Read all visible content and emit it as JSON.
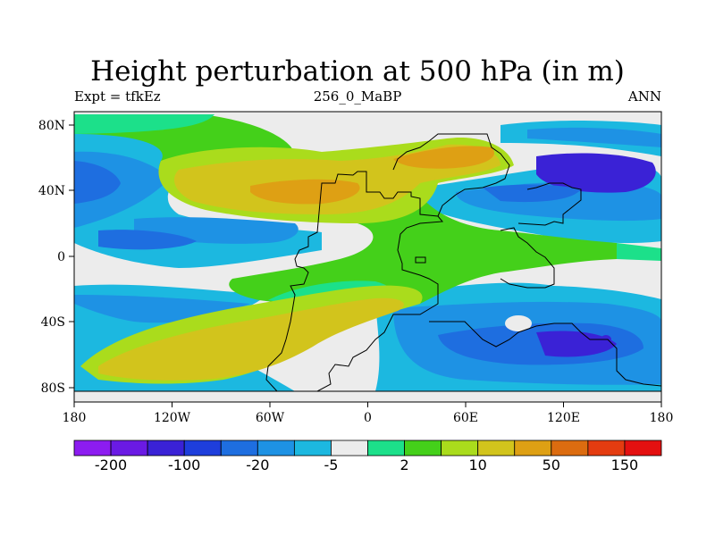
{
  "title": "Height perturbation at 500 hPa (in m)",
  "left_label": "Expt = tfkEz",
  "center_label": "256_0_MaBP",
  "right_label": "ANN",
  "lon_ticks": [
    "180",
    "120W",
    "60W",
    "0",
    "60E",
    "120E",
    "180"
  ],
  "lat_ticks": [
    "80N",
    "40N",
    "0",
    "40S",
    "80S"
  ],
  "colorbar": {
    "colors": [
      "#8c1cf0",
      "#6a1ae4",
      "#3a22d6",
      "#1e3edc",
      "#1e6ee0",
      "#1e92e4",
      "#1cb8e0",
      "#ececec",
      "#1ce08a",
      "#44d01a",
      "#aadc1c",
      "#d2c41c",
      "#dea014",
      "#dc6c10",
      "#e43c10",
      "#e41010"
    ],
    "labels": [
      "-200",
      "-100",
      "-20",
      "-5",
      "2",
      "10",
      "50",
      "150"
    ]
  }
}
